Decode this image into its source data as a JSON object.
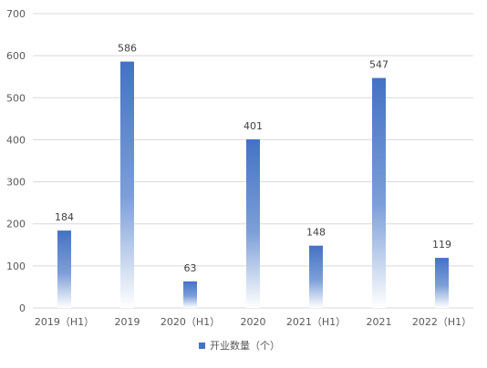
{
  "chart_data": {
    "type": "bar",
    "categories": [
      "2019（H1）",
      "2019",
      "2020（H1）",
      "2020",
      "2021（H1）",
      "2021",
      "2022（H1）"
    ],
    "series": [
      {
        "name": "开业数量（个）",
        "values": [
          184,
          586,
          63,
          401,
          148,
          547,
          119
        ]
      }
    ],
    "ylim": [
      0,
      700
    ],
    "yticks": [
      0,
      100,
      200,
      300,
      400,
      500,
      600,
      700
    ],
    "grid": true,
    "legend": "bottom-center",
    "data_labels": true,
    "colors": {
      "bar_top": "#4472c4",
      "bar_bottom": "#ffffff",
      "grid": "#d9d9d9",
      "text": "#595959"
    }
  }
}
